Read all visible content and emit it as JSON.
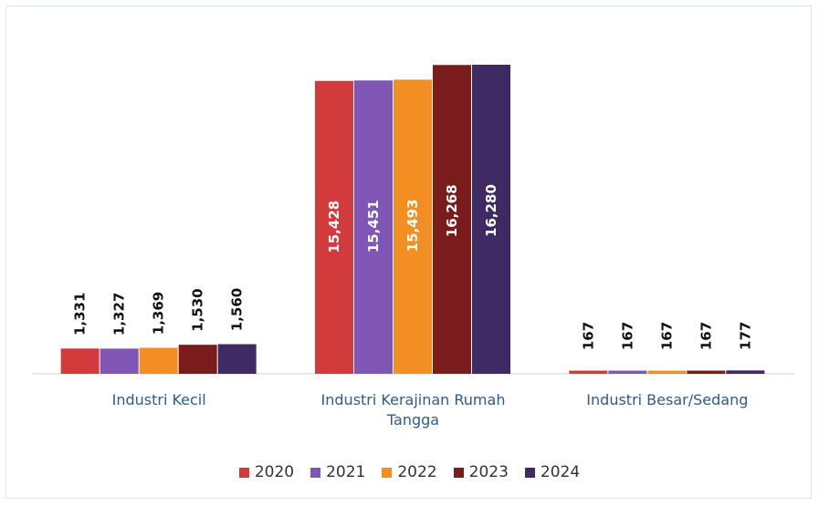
{
  "chart_data": {
    "type": "bar",
    "categories": [
      "Industri Kecil",
      "Industri Kerajinan Rumah Tangga",
      "Industri Besar/Sedang"
    ],
    "series": [
      {
        "name": "2020",
        "color": "#d13b3b",
        "values": [
          1331,
          15428,
          167
        ],
        "value_labels": [
          "1,331",
          "15,428",
          "167"
        ]
      },
      {
        "name": "2021",
        "color": "#7f56b3",
        "values": [
          1327,
          15451,
          167
        ],
        "value_labels": [
          "1,327",
          "15,451",
          "167"
        ]
      },
      {
        "name": "2022",
        "color": "#f28e22",
        "values": [
          1369,
          15493,
          167
        ],
        "value_labels": [
          "1,369",
          "15,493",
          "167"
        ]
      },
      {
        "name": "2023",
        "color": "#7b1c1c",
        "values": [
          1530,
          16268,
          167
        ],
        "value_labels": [
          "1,530",
          "16,268",
          "167"
        ]
      },
      {
        "name": "2024",
        "color": "#3f2a63",
        "values": [
          1560,
          16280,
          177
        ],
        "value_labels": [
          "1,560",
          "16,280",
          "177"
        ]
      }
    ],
    "legend": "bottom"
  }
}
